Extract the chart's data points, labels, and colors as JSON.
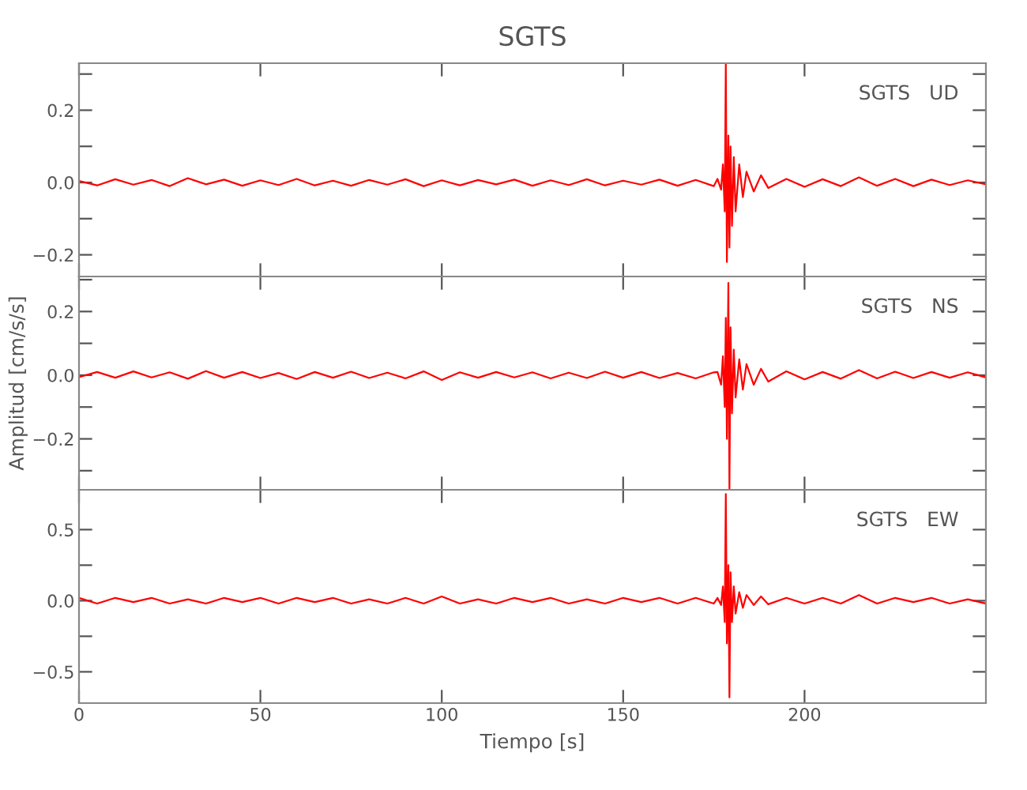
{
  "chart_data": [
    {
      "type": "line",
      "title": "SGTS",
      "annotations": [
        "SGTS   UD"
      ],
      "tick_labels": "y",
      "grid": false,
      "legend": false,
      "x": [
        0,
        5,
        10,
        15,
        20,
        25,
        30,
        35,
        40,
        45,
        50,
        55,
        60,
        65,
        70,
        75,
        80,
        85,
        90,
        95,
        100,
        105,
        110,
        115,
        120,
        125,
        130,
        135,
        140,
        145,
        150,
        155,
        160,
        165,
        170,
        175,
        176,
        177,
        177.5,
        178,
        178.3,
        178.6,
        179,
        179.3,
        179.6,
        180,
        180.5,
        181,
        182,
        183,
        184,
        186,
        188,
        190,
        195,
        200,
        205,
        210,
        215,
        220,
        225,
        230,
        235,
        240,
        245,
        250
      ],
      "series": [
        {
          "color": "#ff0000",
          "values": [
            0.004,
            -0.008,
            0.009,
            -0.006,
            0.007,
            -0.01,
            0.012,
            -0.005,
            0.008,
            -0.009,
            0.006,
            -0.007,
            0.01,
            -0.008,
            0.005,
            -0.009,
            0.007,
            -0.006,
            0.009,
            -0.01,
            0.006,
            -0.008,
            0.007,
            -0.005,
            0.008,
            -0.009,
            0.006,
            -0.007,
            0.009,
            -0.008,
            0.005,
            -0.006,
            0.008,
            -0.009,
            0.007,
            -0.01,
            0.01,
            -0.02,
            0.05,
            -0.08,
            0.33,
            -0.22,
            0.13,
            -0.18,
            0.1,
            -0.12,
            0.07,
            -0.08,
            0.05,
            -0.04,
            0.03,
            -0.025,
            0.02,
            -0.015,
            0.01,
            -0.012,
            0.009,
            -0.01,
            0.014,
            -0.009,
            0.01,
            -0.01,
            0.008,
            -0.007,
            0.006,
            -0.005
          ]
        }
      ],
      "xlim": [
        0,
        250
      ],
      "xticks": [
        {
          "value": 0,
          "label": null
        },
        {
          "value": 50,
          "label": null
        },
        {
          "value": 100,
          "label": null
        },
        {
          "value": 150,
          "label": null
        },
        {
          "value": 200,
          "label": null
        }
      ],
      "ylim": [
        -0.26,
        0.33
      ],
      "yticks": [
        {
          "value": -0.2,
          "label": "−0.2"
        },
        {
          "value": -0.1,
          "label": null
        },
        {
          "value": 0,
          "label": "0.0"
        },
        {
          "value": 0.1,
          "label": null
        },
        {
          "value": 0.2,
          "label": "0.2"
        },
        {
          "value": 0.3,
          "label": null
        }
      ]
    },
    {
      "type": "line",
      "ylabel": "Amplitud [cm/s/s]",
      "annotations": [
        "SGTS   NS"
      ],
      "tick_labels": "y",
      "grid": false,
      "legend": false,
      "x": [
        0,
        5,
        10,
        15,
        20,
        25,
        30,
        35,
        40,
        45,
        50,
        55,
        60,
        65,
        70,
        75,
        80,
        85,
        90,
        95,
        100,
        105,
        110,
        115,
        120,
        125,
        130,
        135,
        140,
        145,
        150,
        155,
        160,
        165,
        170,
        175,
        176,
        177,
        177.5,
        178,
        178.3,
        178.6,
        179,
        179.3,
        179.6,
        180,
        180.5,
        181,
        182,
        183,
        184,
        186,
        188,
        190,
        195,
        200,
        205,
        210,
        215,
        220,
        225,
        230,
        235,
        240,
        245,
        250
      ],
      "series": [
        {
          "color": "#ff0000",
          "values": [
            -0.006,
            0.01,
            -0.008,
            0.012,
            -0.007,
            0.009,
            -0.011,
            0.013,
            -0.008,
            0.01,
            -0.009,
            0.007,
            -0.012,
            0.01,
            -0.008,
            0.011,
            -0.009,
            0.008,
            -0.01,
            0.012,
            -0.015,
            0.009,
            -0.008,
            0.01,
            -0.007,
            0.009,
            -0.01,
            0.008,
            -0.009,
            0.011,
            -0.008,
            0.01,
            -0.009,
            0.007,
            -0.01,
            0.009,
            0.01,
            -0.03,
            0.06,
            -0.1,
            0.18,
            -0.2,
            0.29,
            -0.36,
            0.15,
            -0.12,
            0.08,
            -0.07,
            0.05,
            -0.045,
            0.035,
            -0.03,
            0.02,
            -0.02,
            0.012,
            -0.013,
            0.01,
            -0.011,
            0.016,
            -0.01,
            0.011,
            -0.009,
            0.01,
            -0.008,
            0.009,
            -0.007
          ]
        }
      ],
      "xlim": [
        0,
        250
      ],
      "xticks": [
        {
          "value": 0,
          "label": null
        },
        {
          "value": 50,
          "label": null
        },
        {
          "value": 100,
          "label": null
        },
        {
          "value": 150,
          "label": null
        },
        {
          "value": 200,
          "label": null
        }
      ],
      "ylim": [
        -0.36,
        0.31
      ],
      "yticks": [
        {
          "value": -0.3,
          "label": null
        },
        {
          "value": -0.2,
          "label": "−0.2"
        },
        {
          "value": -0.1,
          "label": null
        },
        {
          "value": 0,
          "label": "0.0"
        },
        {
          "value": 0.1,
          "label": null
        },
        {
          "value": 0.2,
          "label": "0.2"
        },
        {
          "value": 0.3,
          "label": null
        }
      ]
    },
    {
      "type": "line",
      "xlabel": "Tiempo [s]",
      "annotations": [
        "SGTS   EW"
      ],
      "grid": false,
      "legend": false,
      "x": [
        0,
        5,
        10,
        15,
        20,
        25,
        30,
        35,
        40,
        45,
        50,
        55,
        60,
        65,
        70,
        75,
        80,
        85,
        90,
        95,
        100,
        105,
        110,
        115,
        120,
        125,
        130,
        135,
        140,
        145,
        150,
        155,
        160,
        165,
        170,
        175,
        176,
        177,
        177.5,
        178,
        178.3,
        178.6,
        179,
        179.3,
        179.6,
        180,
        180.5,
        181,
        182,
        183,
        184,
        186,
        188,
        190,
        195,
        200,
        205,
        210,
        215,
        220,
        225,
        230,
        235,
        240,
        245,
        250
      ],
      "series": [
        {
          "color": "#ff0000",
          "values": [
            0.02,
            -0.02,
            0.02,
            -0.01,
            0.02,
            -0.02,
            0.01,
            -0.02,
            0.02,
            -0.01,
            0.02,
            -0.02,
            0.02,
            -0.01,
            0.02,
            -0.02,
            0.01,
            -0.02,
            0.02,
            -0.02,
            0.03,
            -0.02,
            0.01,
            -0.02,
            0.02,
            -0.01,
            0.02,
            -0.02,
            0.01,
            -0.02,
            0.02,
            -0.01,
            0.02,
            -0.02,
            0.02,
            -0.02,
            0.02,
            -0.03,
            0.1,
            -0.15,
            0.75,
            -0.3,
            0.25,
            -0.68,
            0.2,
            -0.15,
            0.1,
            -0.09,
            0.06,
            -0.05,
            0.04,
            -0.03,
            0.03,
            -0.025,
            0.02,
            -0.02,
            0.02,
            -0.02,
            0.04,
            -0.02,
            0.02,
            -0.01,
            0.02,
            -0.02,
            0.01,
            -0.02
          ]
        }
      ],
      "xlim": [
        0,
        250
      ],
      "xticks": [
        {
          "value": 0,
          "label": "0"
        },
        {
          "value": 50,
          "label": "50"
        },
        {
          "value": 100,
          "label": "100"
        },
        {
          "value": 150,
          "label": "150"
        },
        {
          "value": 200,
          "label": "200"
        }
      ],
      "ylim": [
        -0.72,
        0.78
      ],
      "yticks": [
        {
          "value": -0.5,
          "label": "−0.5"
        },
        {
          "value": -0.25,
          "label": null
        },
        {
          "value": 0,
          "label": "0.0"
        },
        {
          "value": 0.25,
          "label": null
        },
        {
          "value": 0.5,
          "label": "0.5"
        }
      ]
    }
  ]
}
